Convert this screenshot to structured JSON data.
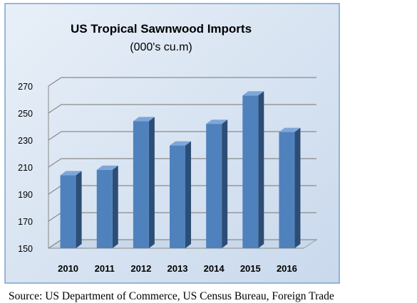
{
  "chart_data": {
    "type": "bar",
    "title": "US Tropical Sawnwood Imports",
    "subtitle": "(000's cu.m)",
    "xlabel": "",
    "ylabel": "",
    "categories": [
      "2010",
      "2011",
      "2012",
      "2013",
      "2014",
      "2015",
      "2016"
    ],
    "values": [
      204,
      208,
      244,
      226,
      242,
      263,
      236
    ],
    "ylim": [
      150,
      270
    ],
    "yticks": [
      "150",
      "170",
      "190",
      "210",
      "230",
      "250",
      "270"
    ],
    "grid": true,
    "legend": "none",
    "colors": {
      "bar_front": "#4f81bd",
      "bar_side": "#2c4d75",
      "bar_top": "#7ea6d8",
      "plot_background": "#dce6f1",
      "frame_border": "#7ba3cc"
    }
  },
  "source": "Source: US Department of Commerce, US Census Bureau, Foreign Trade"
}
